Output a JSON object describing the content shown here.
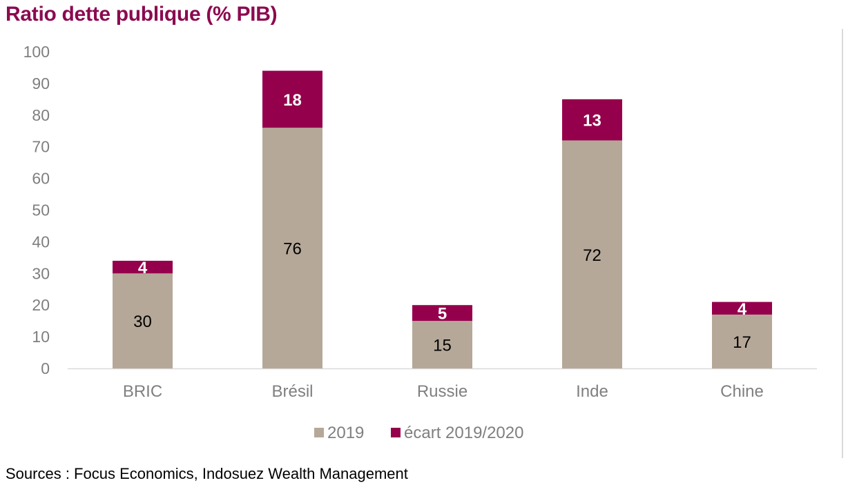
{
  "title": "Ratio dette publique (% PIB)",
  "source": "Sources : Focus Economics, Indosuez Wealth Management",
  "colors": {
    "title": "#8b0a50",
    "base_series": "#b5a898",
    "ecart_series": "#95004c",
    "axis_text": "#7f7f7f"
  },
  "chart_data": {
    "type": "bar",
    "stacked": true,
    "categories": [
      "BRIC",
      "Brésil",
      "Russie",
      "Inde",
      "Chine"
    ],
    "series": [
      {
        "name": "2019",
        "values": [
          30,
          76,
          15,
          72,
          17
        ]
      },
      {
        "name": "écart 2019/2020",
        "values": [
          4,
          18,
          5,
          13,
          4
        ]
      }
    ],
    "yticks": [
      "0",
      "10",
      "20",
      "30",
      "40",
      "50",
      "60",
      "70",
      "80",
      "90",
      "100"
    ],
    "ylim": [
      0,
      100
    ],
    "grid": false,
    "legend": "bottom"
  }
}
